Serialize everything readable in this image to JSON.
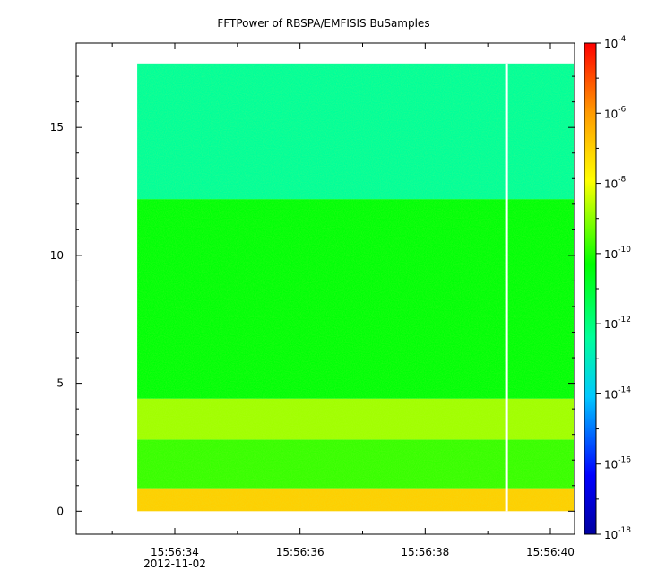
{
  "chart_data": {
    "type": "heatmap",
    "title": "FFTPower of RBSPA/EMFISIS  BuSamples",
    "xlabel": "",
    "ylabel": "",
    "x_tick_labels": [
      "15:56:34",
      "15:56:36",
      "15:56:38",
      "15:56:40"
    ],
    "x_date_label": "2012-11-02",
    "y_ticks": [
      0,
      5,
      10,
      15
    ],
    "y_tick_labels": [
      "0",
      "5",
      "10",
      "15"
    ],
    "ylim": [
      -0.9,
      18.3
    ],
    "data_ylim": [
      0,
      17.5
    ],
    "data_xlim": [
      "15:56:33.4",
      "15:56:40.4"
    ],
    "gap_at": "15:56:39.3",
    "colorbar": {
      "scale": "log",
      "range": [
        "1e-18",
        "1e-4"
      ],
      "tick_labels": [
        {
          "base": "10",
          "exp": "-4"
        },
        {
          "base": "10",
          "exp": "-6"
        },
        {
          "base": "10",
          "exp": "-8"
        },
        {
          "base": "10",
          "exp": "-10"
        },
        {
          "base": "10",
          "exp": "-12"
        },
        {
          "base": "10",
          "exp": "-14"
        },
        {
          "base": "10",
          "exp": "-16"
        },
        {
          "base": "10",
          "exp": "-18"
        }
      ]
    },
    "bands": [
      {
        "y_range": [
          0.0,
          0.9
        ],
        "log_power": -7.0
      },
      {
        "y_range": [
          0.9,
          2.8
        ],
        "log_power": -9.8
      },
      {
        "y_range": [
          2.8,
          4.4
        ],
        "log_power": -8.8
      },
      {
        "y_range": [
          4.4,
          12.2
        ],
        "log_power": -10.4
      },
      {
        "y_range": [
          12.2,
          17.5
        ],
        "log_power": -12.4
      }
    ]
  }
}
